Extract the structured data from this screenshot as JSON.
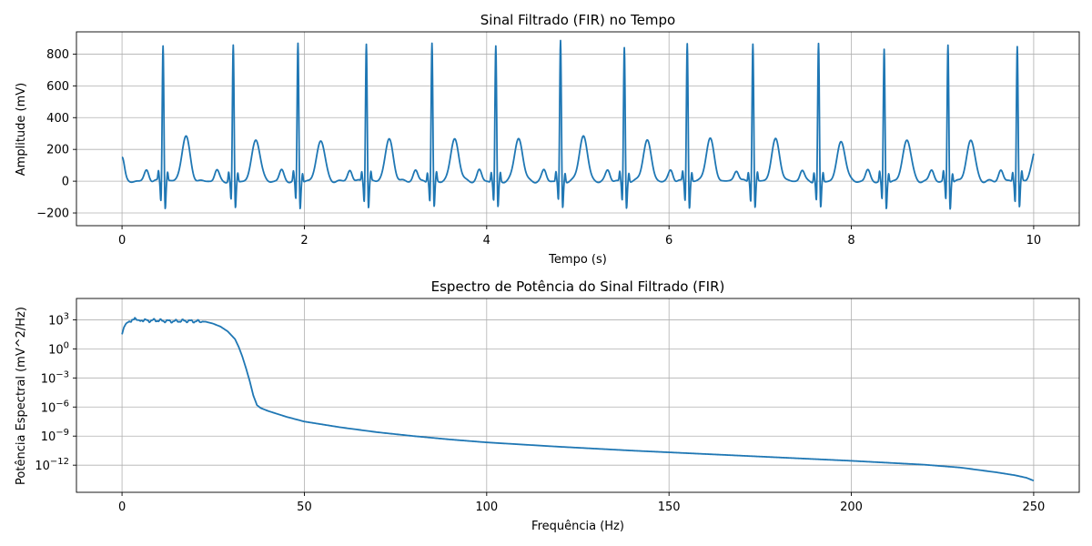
{
  "colors": {
    "series": "#1f77b4",
    "grid": "#b0b0b0"
  },
  "chart_data": [
    {
      "type": "line",
      "title": "Sinal Filtrado (FIR) no Tempo",
      "xlabel": "Tempo (s)",
      "ylabel": "Amplitude (mV)",
      "xlim": [
        -0.5,
        10.5
      ],
      "ylim": [
        -280,
        940
      ],
      "xticks": [
        0,
        2,
        4,
        6,
        8,
        10
      ],
      "xtick_labels": [
        "0",
        "2",
        "4",
        "6",
        "8",
        "10"
      ],
      "yticks": [
        -200,
        0,
        200,
        400,
        600,
        800
      ],
      "ytick_labels": [
        "−200",
        "0",
        "200",
        "400",
        "600",
        "800"
      ],
      "grid": true,
      "series": [
        {
          "r_peak_times": [
            0.45,
            1.22,
            1.93,
            2.68,
            3.4,
            4.1,
            4.81,
            5.51,
            6.2,
            6.92,
            7.64,
            8.36,
            9.06,
            9.82
          ],
          "r_peak_values": [
            865,
            855,
            870,
            875,
            870,
            850,
            885,
            845,
            875,
            870,
            865,
            830,
            860,
            855
          ],
          "t_wave_values": [
            280,
            265,
            260,
            260,
            265,
            270,
            285,
            255,
            265,
            260,
            250,
            265,
            260,
            255
          ],
          "start_value": 150,
          "end_value": 95
        }
      ]
    },
    {
      "type": "line",
      "title": "Espectro de Potência do Sinal Filtrado (FIR)",
      "xlabel": "Frequência (Hz)",
      "ylabel": "Potência Espectral (mV^2/Hz)",
      "yscale": "log",
      "xlim": [
        -12.5,
        262.5
      ],
      "ylim_log10": [
        -14.8,
        5.2
      ],
      "xticks": [
        0,
        50,
        100,
        150,
        200,
        250
      ],
      "xtick_labels": [
        "0",
        "50",
        "100",
        "150",
        "200",
        "250"
      ],
      "yticks_log10": [
        3,
        0,
        -3,
        -6,
        -9,
        -12
      ],
      "ytick_bases": [
        "10",
        "10",
        "10",
        "10",
        "10",
        "10"
      ],
      "ytick_exponents": [
        "3",
        "0",
        "−3",
        "−6",
        "−9",
        "−12"
      ],
      "grid": true,
      "series": [
        {
          "x": [
            0,
            0.5,
            1.5,
            2.5,
            3.5,
            4.5,
            5.5,
            7,
            9,
            11,
            14,
            17,
            20,
            23,
            25,
            27,
            29,
            31,
            32,
            33,
            34,
            35,
            36,
            37,
            38,
            40,
            45,
            50,
            60,
            70,
            80,
            90,
            100,
            120,
            140,
            160,
            180,
            200,
            210,
            220,
            230,
            240,
            245,
            248,
            250
          ],
          "y_log10": [
            1.5,
            2.2,
            2.9,
            2.7,
            3.3,
            2.8,
            3.0,
            2.9,
            2.95,
            2.9,
            2.85,
            2.9,
            2.85,
            2.8,
            2.6,
            2.3,
            1.8,
            1.0,
            0.2,
            -0.8,
            -2.0,
            -3.3,
            -4.8,
            -5.8,
            -6.1,
            -6.4,
            -7.0,
            -7.5,
            -8.1,
            -8.6,
            -9.0,
            -9.35,
            -9.65,
            -10.1,
            -10.5,
            -10.85,
            -11.2,
            -11.55,
            -11.75,
            -11.95,
            -12.25,
            -12.75,
            -13.05,
            -13.3,
            -13.6
          ]
        }
      ]
    }
  ]
}
